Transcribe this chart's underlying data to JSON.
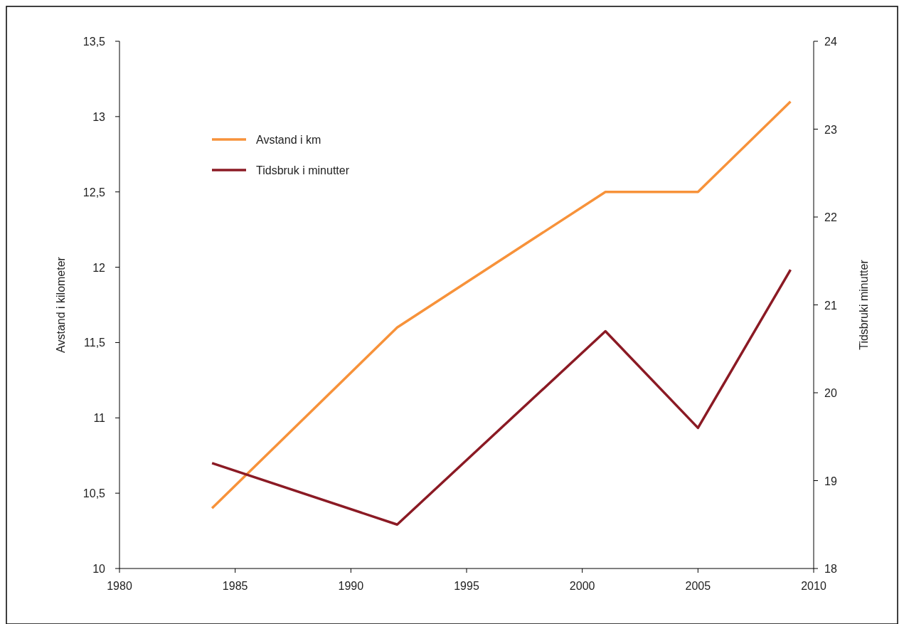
{
  "chart_data": {
    "type": "line",
    "ylabel": "Avstand i kilometer",
    "y2label": "Tidsbruki minutter",
    "x": [
      1984,
      1992,
      2001,
      2005,
      2009
    ],
    "xlim": [
      1980,
      2010
    ],
    "xticks": [
      1980,
      1985,
      1990,
      1995,
      2000,
      2005,
      2010
    ],
    "ylim": [
      10,
      13.5
    ],
    "yticks": [
      10,
      {
        "value": 10.5,
        "label": "10,5"
      },
      11,
      {
        "value": 11.5,
        "label": "11,5"
      },
      12,
      {
        "value": 12.5,
        "label": "12,5"
      },
      13,
      {
        "value": 13.5,
        "label": "13,5"
      }
    ],
    "y2lim": [
      18,
      24
    ],
    "y2ticks": [
      18,
      19,
      20,
      21,
      22,
      23,
      24
    ],
    "grid": false,
    "legend": "top left",
    "marker": "none",
    "line_style": "solid",
    "series": [
      {
        "name": "Avstand i km",
        "color": "#f7923a",
        "values": [
          10.4,
          11.6,
          12.5,
          12.5,
          13.1
        ]
      },
      {
        "name": "Tidsbruk i minutter",
        "color": "#8b1a24",
        "axis": "y2",
        "values": [
          19.2,
          18.5,
          20.7,
          19.6,
          21.4
        ]
      }
    ]
  }
}
